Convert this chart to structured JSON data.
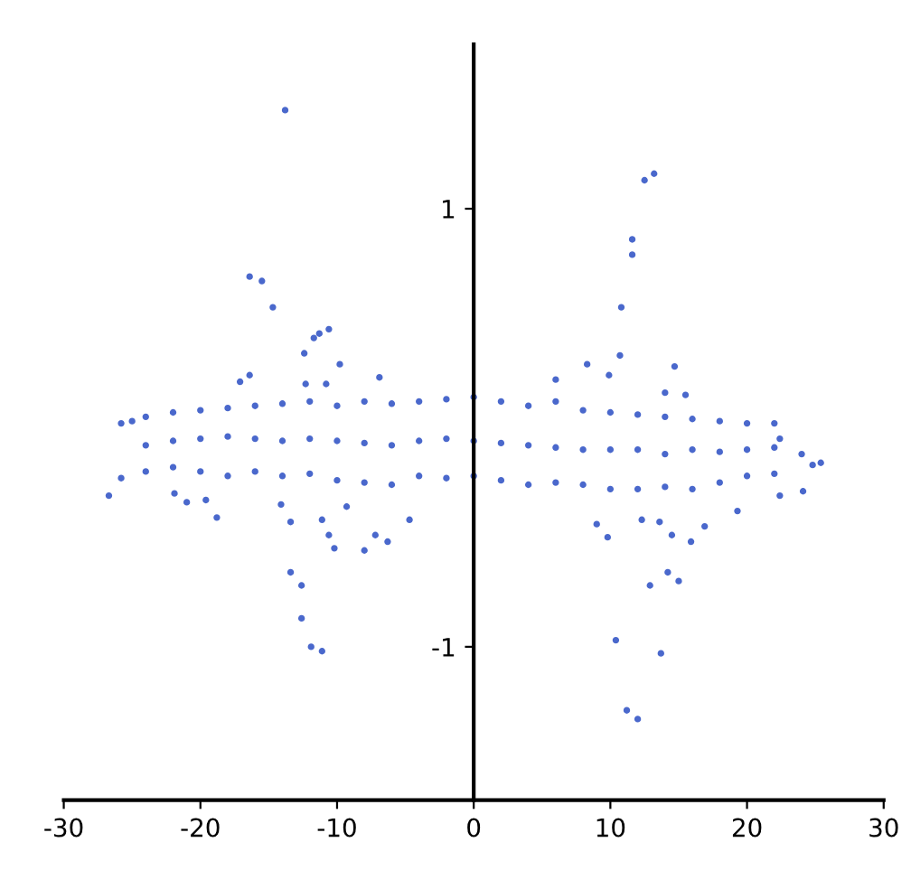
{
  "chart_data": {
    "type": "scatter",
    "marker": "circle",
    "grid": false,
    "xlim": [
      -30,
      30
    ],
    "ylim": [
      -1.7,
      1.75
    ],
    "xticks": [
      -30,
      -20,
      -10,
      0,
      10,
      20,
      30
    ],
    "yticks": [
      -1,
      1
    ],
    "series": [
      {
        "color": "#4a68cc",
        "x": [
          -13.8,
          -16.4,
          -15.5,
          -14.7,
          -11.7,
          -11.3,
          -10.6,
          -12.4,
          -9.8,
          -16.4,
          -6.9,
          -12.3,
          -10.8,
          -17.1,
          -13.4,
          -12.6,
          -12.6,
          -11.9,
          -11.1,
          -26.7,
          -25.8,
          -21.9,
          -21,
          -18.8,
          -19.6,
          -14.1,
          -13.4,
          -11.1,
          -10.6,
          -10.2,
          -8,
          -7.2,
          -6.3,
          -9.3,
          -4.7,
          12.5,
          13.2,
          11.6,
          11.6,
          10.8,
          10.7,
          9.9,
          8.3,
          6,
          14.7,
          14,
          15.5,
          9,
          9.8,
          12.3,
          13.6,
          14.5,
          15.9,
          16.9,
          12.9,
          14.2,
          15,
          10.4,
          13.7,
          11.2,
          12,
          19.3,
          25.4,
          24.8,
          24,
          24.1,
          22.4,
          22.4,
          -25.8,
          -25,
          -24,
          -24,
          -24,
          -22,
          -22,
          -22,
          -20,
          -20,
          -20,
          -18,
          -18,
          -18,
          -16,
          -16,
          -16,
          -14,
          -14,
          -14,
          -12,
          -12,
          -12,
          -10,
          -10,
          -10,
          -8,
          -8,
          -8,
          -6,
          -6,
          -6,
          -4,
          -4,
          -4,
          -2,
          -2,
          -2,
          0,
          0,
          0,
          2,
          2,
          2,
          4,
          4,
          4,
          6,
          6,
          6,
          8,
          8,
          8,
          10,
          10,
          10,
          12,
          12,
          12,
          14,
          14,
          14,
          16,
          16,
          16,
          18,
          18,
          18,
          20,
          20,
          20,
          22,
          22,
          22
        ],
        "values": [
          1.45,
          0.69,
          0.67,
          0.55,
          0.41,
          0.43,
          0.45,
          0.34,
          0.29,
          0.24,
          0.23,
          0.2,
          0.2,
          0.21,
          -0.66,
          -0.72,
          -0.87,
          -1.0,
          -1.02,
          -0.31,
          -0.23,
          -0.3,
          -0.34,
          -0.41,
          -0.33,
          -0.35,
          -0.43,
          -0.42,
          -0.49,
          -0.55,
          -0.56,
          -0.49,
          -0.52,
          -0.36,
          -0.42,
          1.13,
          1.16,
          0.86,
          0.79,
          0.55,
          0.33,
          0.24,
          0.29,
          0.22,
          0.28,
          0.16,
          0.15,
          -0.44,
          -0.5,
          -0.42,
          -0.43,
          -0.49,
          -0.52,
          -0.45,
          -0.72,
          -0.66,
          -0.7,
          -0.97,
          -1.03,
          -1.29,
          -1.33,
          -0.38,
          -0.16,
          -0.17,
          -0.12,
          -0.29,
          -0.05,
          -0.31,
          0.02,
          0.03,
          0.05,
          -0.08,
          -0.2,
          0.07,
          -0.06,
          -0.18,
          0.08,
          -0.05,
          -0.2,
          0.09,
          -0.04,
          -0.22,
          0.1,
          -0.05,
          -0.2,
          0.11,
          -0.06,
          -0.22,
          0.12,
          -0.05,
          -0.21,
          0.1,
          -0.06,
          -0.24,
          0.12,
          -0.07,
          -0.25,
          0.11,
          -0.08,
          -0.26,
          0.12,
          -0.06,
          -0.22,
          0.13,
          -0.05,
          -0.23,
          0.14,
          -0.06,
          -0.22,
          0.12,
          -0.07,
          -0.24,
          0.1,
          -0.08,
          -0.26,
          0.12,
          -0.09,
          -0.25,
          0.08,
          -0.1,
          -0.26,
          0.07,
          -0.1,
          -0.28,
          0.06,
          -0.1,
          -0.28,
          0.05,
          -0.12,
          -0.27,
          0.04,
          -0.1,
          -0.28,
          0.03,
          -0.11,
          -0.25,
          0.02,
          -0.1,
          -0.22,
          0.02,
          -0.09,
          -0.21
        ]
      }
    ]
  }
}
